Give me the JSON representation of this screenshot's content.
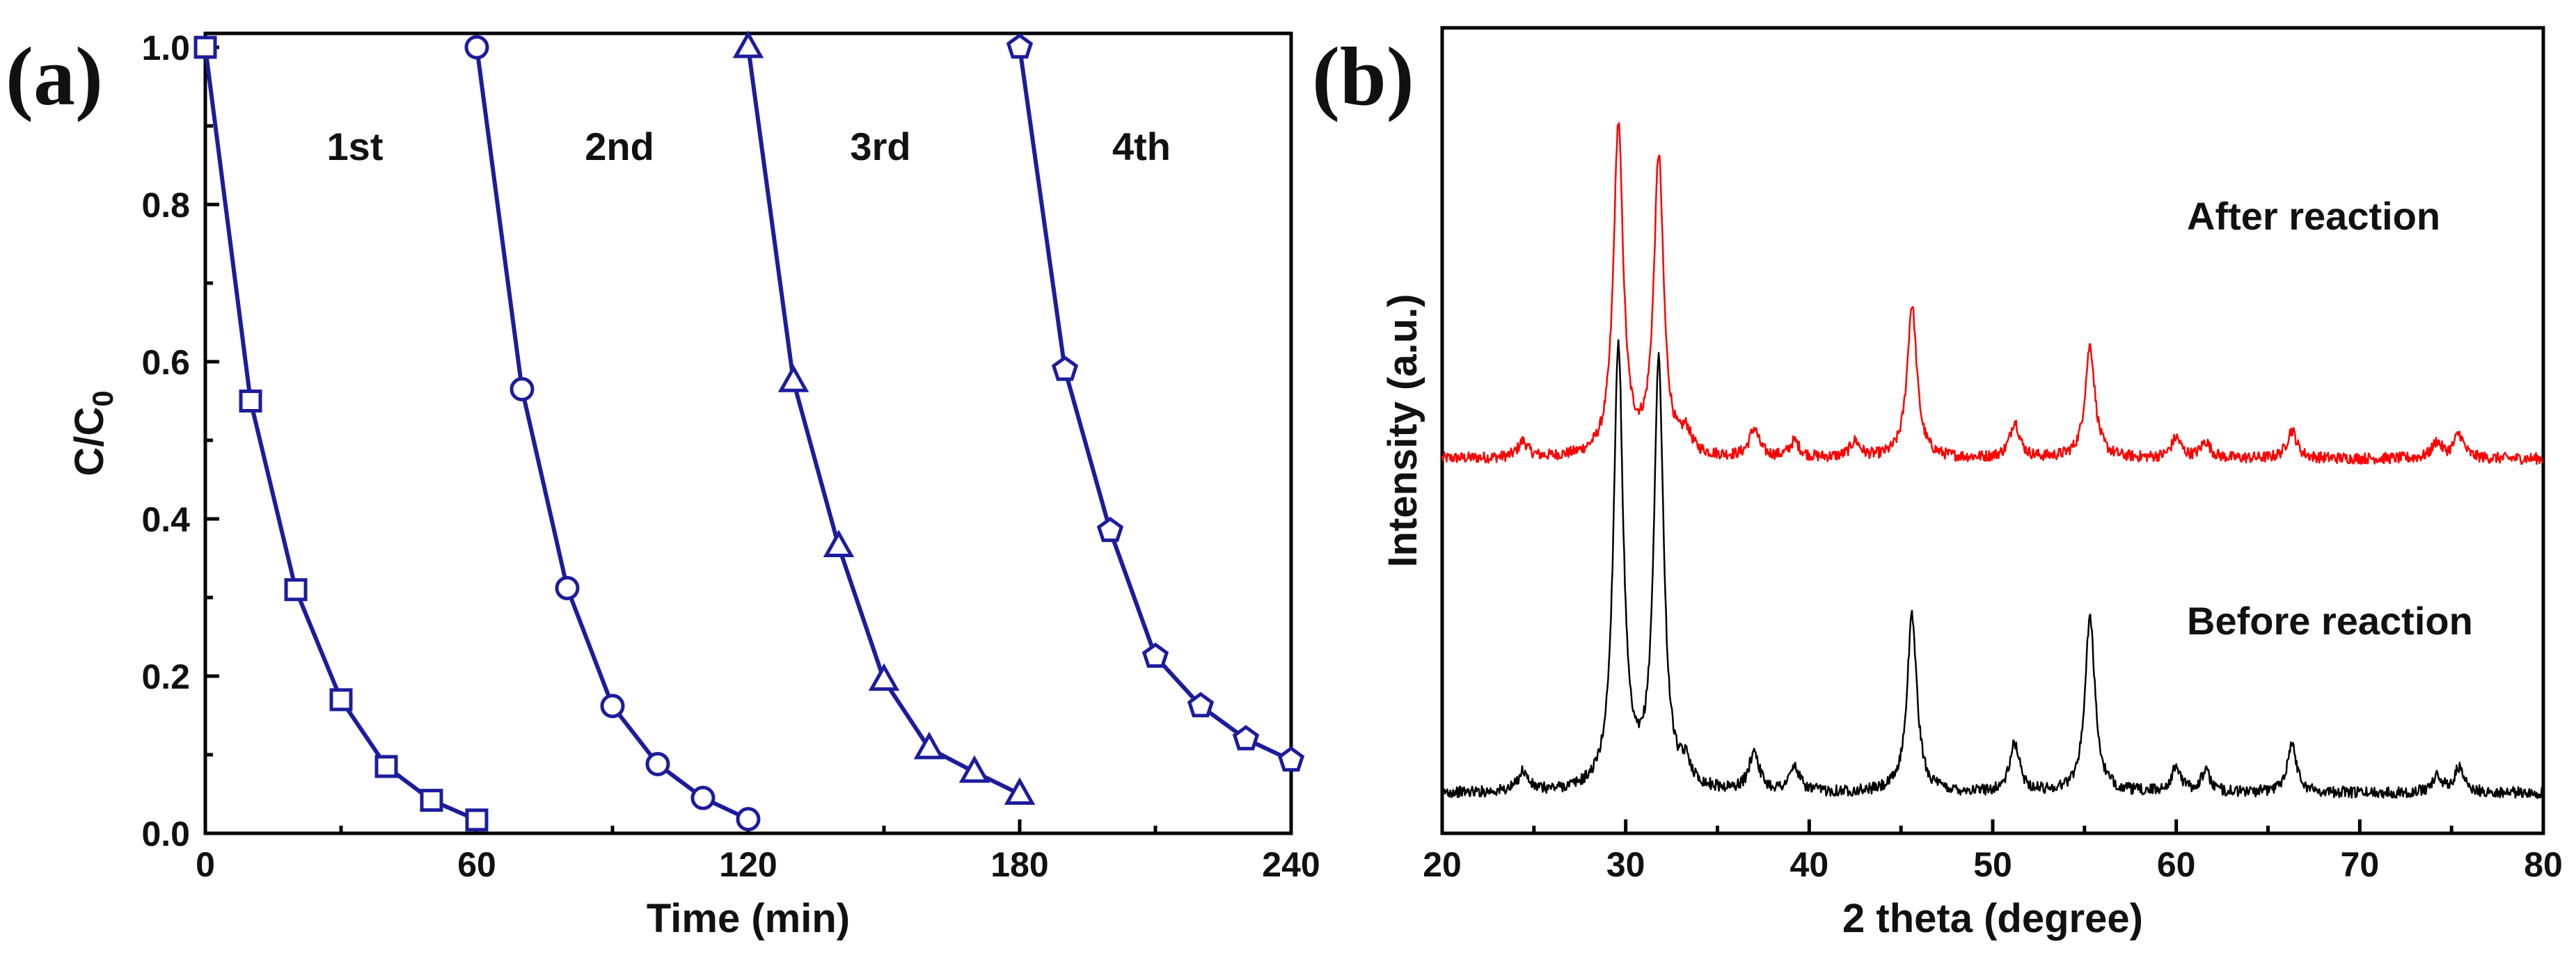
{
  "chart_data": [
    {
      "panel_label": "(a)",
      "type": "line",
      "xlabel": "Time (min)",
      "ylabel_main": "C/C",
      "ylabel_sub": "0",
      "xlim": [
        0,
        240
      ],
      "ylim": [
        0,
        1.0
      ],
      "xticks": [
        0,
        60,
        120,
        180,
        240
      ],
      "yticks": [
        "0.0",
        "0.2",
        "0.4",
        "0.6",
        "0.8",
        "1.0"
      ],
      "series_color": "#1c1c9c",
      "series": [
        {
          "name": "1st",
          "marker": "square",
          "x": [
            0,
            10,
            20,
            30,
            40,
            50,
            60
          ],
          "y": [
            1.0,
            0.55,
            0.31,
            0.17,
            0.085,
            0.042,
            0.017
          ]
        },
        {
          "name": "2nd",
          "marker": "circle",
          "x": [
            60,
            70,
            80,
            90,
            100,
            110,
            120
          ],
          "y": [
            1.0,
            0.565,
            0.312,
            0.162,
            0.088,
            0.045,
            0.018
          ]
        },
        {
          "name": "3rd",
          "marker": "triangle",
          "x": [
            120,
            130,
            140,
            150,
            160,
            170,
            180
          ],
          "y": [
            1.0,
            0.575,
            0.365,
            0.195,
            0.108,
            0.078,
            0.05
          ]
        },
        {
          "name": "4th",
          "marker": "pentagon",
          "x": [
            180,
            190,
            200,
            210,
            220,
            230,
            240
          ],
          "y": [
            1.0,
            0.59,
            0.385,
            0.225,
            0.162,
            0.12,
            0.093
          ]
        }
      ]
    },
    {
      "panel_label": "(b)",
      "type": "line",
      "xlabel": "2 theta (degree)",
      "ylabel": "Intensity (a.u.)",
      "xlim": [
        20,
        80
      ],
      "xticks": [
        20,
        30,
        40,
        50,
        60,
        70,
        80
      ],
      "series": [
        {
          "name": "After reaction",
          "color": "#ff0000",
          "baseline": 0.465,
          "peaks": [
            [
              24.4,
              0.02
            ],
            [
              29.6,
              0.41
            ],
            [
              31.8,
              0.37
            ],
            [
              33.3,
              0.025
            ],
            [
              37.0,
              0.035
            ],
            [
              39.2,
              0.02
            ],
            [
              42.5,
              0.02
            ],
            [
              45.6,
              0.19
            ],
            [
              51.2,
              0.045
            ],
            [
              55.3,
              0.14
            ],
            [
              60.0,
              0.025
            ],
            [
              61.6,
              0.02
            ],
            [
              66.3,
              0.035
            ],
            [
              74.2,
              0.02
            ],
            [
              75.4,
              0.03
            ]
          ]
        },
        {
          "name": "Before reaction",
          "color": "#000000",
          "baseline": 0.05,
          "peaks": [
            [
              24.4,
              0.025
            ],
            [
              29.6,
              0.55
            ],
            [
              31.8,
              0.53
            ],
            [
              33.3,
              0.025
            ],
            [
              37.0,
              0.05
            ],
            [
              39.2,
              0.03
            ],
            [
              45.6,
              0.22
            ],
            [
              51.2,
              0.06
            ],
            [
              55.3,
              0.22
            ],
            [
              60.0,
              0.03
            ],
            [
              61.6,
              0.025
            ],
            [
              66.3,
              0.06
            ],
            [
              74.2,
              0.02
            ],
            [
              75.4,
              0.03
            ]
          ]
        }
      ]
    }
  ]
}
